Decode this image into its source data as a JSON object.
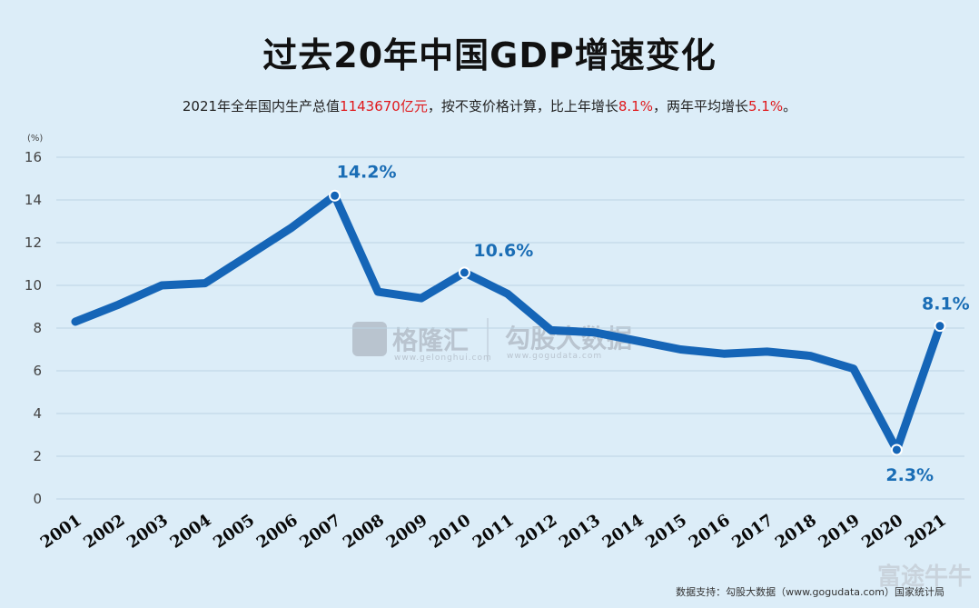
{
  "title": "过去20年中国GDP增速变化",
  "subtitle": {
    "p1": "2021年全年国内生产总值",
    "v1": "1143670亿元",
    "p2": "，按不变价格计算，比上年增长",
    "v2": "8.1%",
    "p3": "，两年平均增长",
    "v3": "5.1%",
    "p4": "。"
  },
  "chart_data": {
    "type": "line",
    "unit_label": "(%)",
    "x": [
      "2001",
      "2002",
      "2003",
      "2004",
      "2005",
      "2006",
      "2007",
      "2008",
      "2009",
      "2010",
      "2011",
      "2012",
      "2013",
      "2014",
      "2015",
      "2016",
      "2017",
      "2018",
      "2019",
      "2020",
      "2021"
    ],
    "y": [
      8.3,
      9.1,
      10.0,
      10.1,
      11.4,
      12.7,
      14.2,
      9.7,
      9.4,
      10.6,
      9.6,
      7.9,
      7.8,
      7.4,
      7.0,
      6.8,
      6.9,
      6.7,
      6.1,
      2.3,
      8.1
    ],
    "ylim": [
      0,
      16
    ],
    "yticks": [
      0,
      2,
      4,
      6,
      8,
      10,
      12,
      14,
      16
    ],
    "grid": true,
    "annotations": [
      {
        "x": "2007",
        "label": "14.2%",
        "pos": "above"
      },
      {
        "x": "2010",
        "label": "10.6%",
        "pos": "above"
      },
      {
        "x": "2020",
        "label": "2.3%",
        "pos": "below"
      },
      {
        "x": "2021",
        "label": "8.1%",
        "pos": "above"
      }
    ],
    "line_color": "#1565b7"
  },
  "watermark": {
    "brand1": "格隆汇",
    "brand1_url": "www.gelonghui.com",
    "brand2": "勾股大数据",
    "brand2_url": "www.gogudata.com"
  },
  "source": "数据支持：勾股大数据（www.gogudata.com）国家统计局",
  "corner_brand": "富途牛牛"
}
